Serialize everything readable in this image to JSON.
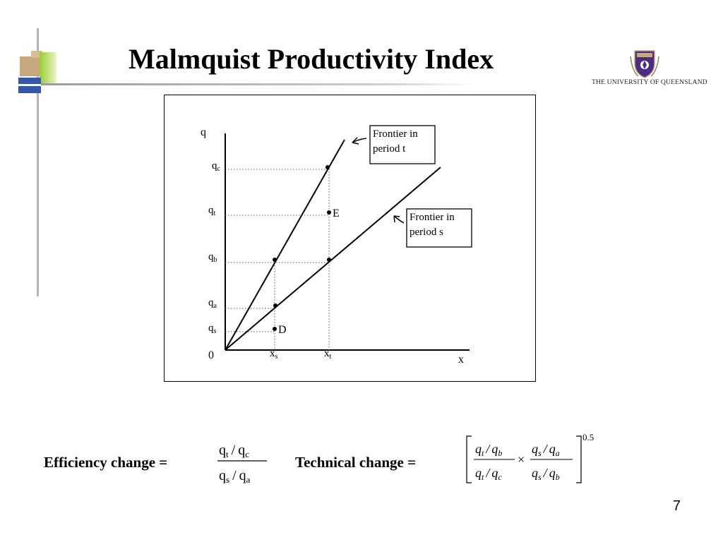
{
  "slide": {
    "title": "Malmquist Productivity Index",
    "page_number": "7",
    "logo_text": "THE UNIVERSITY OF QUEENSLAND",
    "colors": {
      "deco_tan": "#C8A97E",
      "deco_green": "#99CC33",
      "deco_blue": "#3355AA",
      "deco_gray": "#999999",
      "logo_purple": "#4B2E83"
    }
  },
  "diagram": {
    "y_axis_label": "q",
    "x_axis_label": "x",
    "origin_label": "0",
    "y_ticks": [
      {
        "base": "q",
        "sub": "c"
      },
      {
        "base": "q",
        "sub": "t"
      },
      {
        "base": "q",
        "sub": "b"
      },
      {
        "base": "q",
        "sub": "a"
      },
      {
        "base": "q",
        "sub": "s"
      }
    ],
    "x_ticks": [
      {
        "base": "x",
        "sub": "s"
      },
      {
        "base": "x",
        "sub": "t"
      }
    ],
    "point_labels": {
      "E": "E",
      "D": "D"
    },
    "frontier_t_label": [
      "Frontier in",
      "period t"
    ],
    "frontier_s_label": [
      "Frontier in",
      "period s"
    ]
  },
  "formulas": {
    "efficiency_label": "Efficiency change  =",
    "efficiency_num": {
      "a": "q",
      "a_sub": "t",
      "slash": "/",
      "b": "q",
      "b_sub": "c"
    },
    "efficiency_den": {
      "a": "q",
      "a_sub": "s",
      "slash": "/",
      "b": "q",
      "b_sub": "a"
    },
    "technical_label": "Technical change  =",
    "technical_exponent": "0.5",
    "times": "×",
    "tech_frac1_num": {
      "a": "q",
      "a_sub": "t",
      "slash": "/",
      "b": "q",
      "b_sub": "b"
    },
    "tech_frac1_den": {
      "a": "q",
      "a_sub": "t",
      "slash": "/",
      "b": "q",
      "b_sub": "c"
    },
    "tech_frac2_num": {
      "a": "q",
      "a_sub": "s",
      "slash": "/",
      "b": "q",
      "b_sub": "a"
    },
    "tech_frac2_den": {
      "a": "q",
      "a_sub": "s",
      "slash": "/",
      "b": "q",
      "b_sub": "b"
    }
  }
}
